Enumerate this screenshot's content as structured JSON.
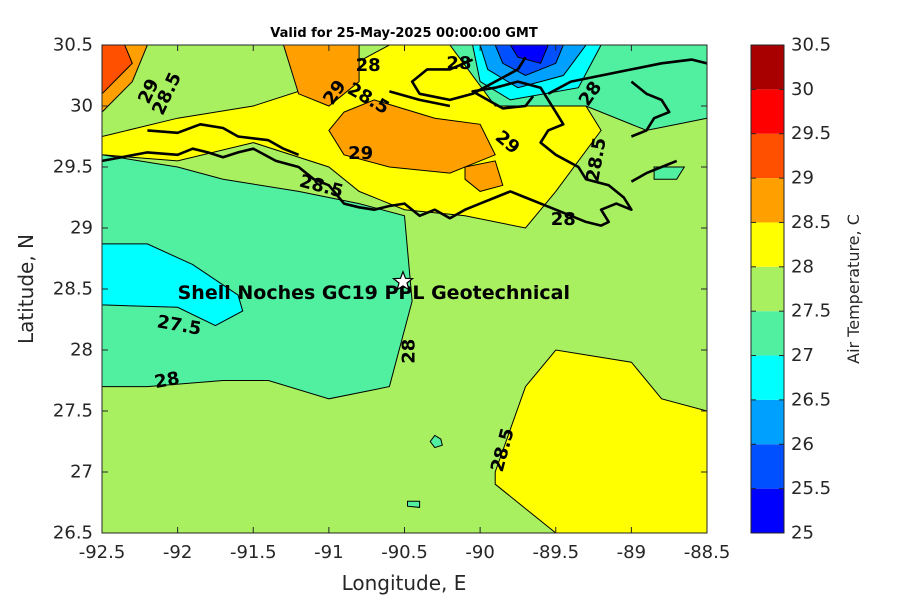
{
  "chart_data": {
    "type": "heatmap",
    "title": "Valid for 25-May-2025 00:00:00 GMT",
    "xlabel": "Longitude, E",
    "ylabel": "Latitude, N",
    "xlim": [
      -92.5,
      -88.5
    ],
    "ylim": [
      26.5,
      30.5
    ],
    "x_ticks": [
      "-92.5",
      "-92",
      "-91.5",
      "-91",
      "-90.5",
      "-90",
      "-89.5",
      "-89",
      "-88.5"
    ],
    "y_ticks": [
      "26.5",
      "27",
      "27.5",
      "28",
      "28.5",
      "29",
      "29.5",
      "30",
      "30.5"
    ],
    "colorbar": {
      "label": "Air Temperature, C",
      "range": [
        25,
        30.5
      ],
      "ticks": [
        "25",
        "25.5",
        "26",
        "26.5",
        "27",
        "27.5",
        "28",
        "28.5",
        "29",
        "29.5",
        "30",
        "30.5"
      ],
      "colors": [
        "#0000a8",
        "#0000ff",
        "#0050ff",
        "#00a0ff",
        "#00ffff",
        "#50f0a0",
        "#a8f060",
        "#ffff00",
        "#ffa000",
        "#ff5000",
        "#ff0000",
        "#a80000"
      ]
    },
    "regions": [
      {
        "value": 28.5,
        "lonlat": [
          [
            -89.5,
            26.5
          ],
          [
            -88.5,
            26.5
          ],
          [
            -88.5,
            27.5
          ],
          [
            -88.8,
            27.6
          ],
          [
            -89.0,
            27.9
          ],
          [
            -89.5,
            28.0
          ],
          [
            -89.7,
            27.7
          ],
          [
            -89.9,
            27.0
          ],
          [
            -89.9,
            26.9
          ],
          [
            -89.7,
            26.7
          ]
        ]
      },
      {
        "value": 27.5,
        "lonlat": [
          [
            -92.5,
            27.7
          ],
          [
            -92.2,
            27.7
          ],
          [
            -91.7,
            27.75
          ],
          [
            -91.4,
            27.75
          ],
          [
            -91.0,
            27.6
          ],
          [
            -90.6,
            27.7
          ],
          [
            -90.45,
            28.4
          ],
          [
            -90.5,
            29.1
          ],
          [
            -90.8,
            29.2
          ],
          [
            -91.2,
            29.3
          ],
          [
            -91.7,
            29.4
          ],
          [
            -92.0,
            29.5
          ],
          [
            -92.5,
            29.6
          ]
        ]
      },
      {
        "value": 27.0,
        "lonlat": [
          [
            -92.5,
            28.37
          ],
          [
            -92.0,
            28.35
          ],
          [
            -91.75,
            28.2
          ],
          [
            -91.57,
            28.32
          ],
          [
            -91.6,
            28.45
          ],
          [
            -91.9,
            28.7
          ],
          [
            -92.2,
            28.87
          ],
          [
            -92.5,
            28.87
          ]
        ]
      },
      {
        "value": 27.5,
        "lonlat": [
          [
            -90.3,
            27.3
          ],
          [
            -90.26,
            27.27
          ],
          [
            -90.25,
            27.22
          ],
          [
            -90.3,
            27.2
          ],
          [
            -90.33,
            27.25
          ]
        ]
      },
      {
        "value": 27.5,
        "lonlat": [
          [
            -90.48,
            26.76
          ],
          [
            -90.4,
            26.76
          ],
          [
            -90.4,
            26.71
          ],
          [
            -90.48,
            26.72
          ]
        ]
      },
      {
        "value": 27.5,
        "lonlat": [
          [
            -88.85,
            29.5
          ],
          [
            -88.65,
            29.5
          ],
          [
            -88.7,
            29.4
          ],
          [
            -88.85,
            29.4
          ]
        ]
      },
      {
        "value": 28.5,
        "lonlat": [
          [
            -92.5,
            29.75
          ],
          [
            -92.0,
            29.9
          ],
          [
            -91.5,
            30.0
          ],
          [
            -91.0,
            30.2
          ],
          [
            -90.9,
            30.3
          ],
          [
            -90.6,
            30.5
          ],
          [
            -89.7,
            30.5
          ],
          [
            -89.4,
            30.2
          ],
          [
            -89.2,
            29.8
          ],
          [
            -89.5,
            29.3
          ],
          [
            -89.7,
            29.0
          ],
          [
            -90.1,
            29.1
          ],
          [
            -90.5,
            29.15
          ],
          [
            -90.8,
            29.3
          ],
          [
            -91.0,
            29.5
          ],
          [
            -91.5,
            29.7
          ],
          [
            -92.0,
            29.55
          ],
          [
            -92.5,
            29.6
          ]
        ]
      },
      {
        "value": 29.0,
        "lonlat": [
          [
            -92.5,
            29.95
          ],
          [
            -92.3,
            30.2
          ],
          [
            -92.2,
            30.5
          ],
          [
            -92.5,
            30.5
          ]
        ]
      },
      {
        "value": 29.0,
        "lonlat": [
          [
            -91.3,
            30.5
          ],
          [
            -90.8,
            30.5
          ],
          [
            -90.8,
            30.2
          ],
          [
            -91.0,
            30.0
          ],
          [
            -91.2,
            30.1
          ]
        ]
      },
      {
        "value": 29.0,
        "lonlat": [
          [
            -90.9,
            29.95
          ],
          [
            -90.7,
            30.05
          ],
          [
            -90.3,
            29.9
          ],
          [
            -90.0,
            29.85
          ],
          [
            -89.9,
            29.6
          ],
          [
            -90.2,
            29.45
          ],
          [
            -90.6,
            29.5
          ],
          [
            -90.9,
            29.6
          ],
          [
            -91.0,
            29.8
          ]
        ]
      },
      {
        "value": 29.0,
        "lonlat": [
          [
            -90.1,
            29.5
          ],
          [
            -89.9,
            29.55
          ],
          [
            -89.85,
            29.35
          ],
          [
            -90.0,
            29.3
          ],
          [
            -90.1,
            29.4
          ]
        ]
      },
      {
        "value": 29.5,
        "lonlat": [
          [
            -92.5,
            30.1
          ],
          [
            -92.3,
            30.35
          ],
          [
            -92.35,
            30.5
          ],
          [
            -92.5,
            30.5
          ]
        ]
      },
      {
        "value": 27.5,
        "lonlat": [
          [
            -90.2,
            30.5
          ],
          [
            -89.9,
            30.0
          ],
          [
            -89.3,
            30.0
          ],
          [
            -88.9,
            29.8
          ],
          [
            -88.5,
            29.9
          ],
          [
            -88.5,
            30.5
          ]
        ]
      },
      {
        "value": 27.0,
        "lonlat": [
          [
            -90.05,
            30.5
          ],
          [
            -90.0,
            30.2
          ],
          [
            -89.8,
            30.05
          ],
          [
            -89.35,
            30.15
          ],
          [
            -89.2,
            30.5
          ]
        ]
      },
      {
        "value": 26.5,
        "lonlat": [
          [
            -90.0,
            30.5
          ],
          [
            -89.95,
            30.3
          ],
          [
            -89.75,
            30.15
          ],
          [
            -89.45,
            30.25
          ],
          [
            -89.3,
            30.5
          ]
        ]
      },
      {
        "value": 26.0,
        "lonlat": [
          [
            -89.9,
            30.5
          ],
          [
            -89.85,
            30.35
          ],
          [
            -89.7,
            30.25
          ],
          [
            -89.5,
            30.35
          ],
          [
            -89.45,
            30.5
          ]
        ]
      },
      {
        "value": 25.5,
        "lonlat": [
          [
            -89.8,
            30.5
          ],
          [
            -89.75,
            30.4
          ],
          [
            -89.6,
            30.35
          ],
          [
            -89.55,
            30.5
          ]
        ]
      }
    ],
    "contour_labels": [
      {
        "text": "29",
        "lon": -92.19,
        "lat": 30.12,
        "angle": -65
      },
      {
        "text": "28.5",
        "lon": -92.07,
        "lat": 30.1,
        "angle": -65
      },
      {
        "text": "28",
        "lon": -90.74,
        "lat": 30.33,
        "angle": 0
      },
      {
        "text": "29",
        "lon": -90.96,
        "lat": 30.11,
        "angle": -55
      },
      {
        "text": "28.5",
        "lon": -90.74,
        "lat": 30.06,
        "angle": 30
      },
      {
        "text": "29",
        "lon": -90.79,
        "lat": 29.61,
        "angle": 0
      },
      {
        "text": "28.5",
        "lon": -91.05,
        "lat": 29.34,
        "angle": 15
      },
      {
        "text": "29",
        "lon": -89.82,
        "lat": 29.7,
        "angle": 40
      },
      {
        "text": "28",
        "lon": -89.27,
        "lat": 30.1,
        "angle": -55
      },
      {
        "text": "28",
        "lon": -90.14,
        "lat": 30.35,
        "angle": 0
      },
      {
        "text": "28.5",
        "lon": -89.23,
        "lat": 29.56,
        "angle": -80
      },
      {
        "text": "28",
        "lon": -89.45,
        "lat": 29.07,
        "angle": 0
      },
      {
        "text": "27.5",
        "lon": -91.99,
        "lat": 28.2,
        "angle": 10
      },
      {
        "text": "28",
        "lon": -92.07,
        "lat": 27.75,
        "angle": -10
      },
      {
        "text": "28",
        "lon": -90.47,
        "lat": 27.99,
        "angle": -90
      },
      {
        "text": "28.5",
        "lon": -89.85,
        "lat": 27.18,
        "angle": -75
      }
    ],
    "annotation": {
      "text": "Shell Noches   GC19 PPL  Geotechnical",
      "lon": -92.0,
      "lat": 28.42
    },
    "marker": {
      "symbol": "star",
      "lon": -90.51,
      "lat": 28.56
    },
    "coastlines": [
      [
        [
          -92.5,
          29.55
        ],
        [
          -92.2,
          29.62
        ],
        [
          -92.0,
          29.6
        ],
        [
          -91.9,
          29.65
        ],
        [
          -91.8,
          29.62
        ],
        [
          -91.7,
          29.58
        ],
        [
          -91.6,
          29.62
        ],
        [
          -91.5,
          29.65
        ],
        [
          -91.35,
          29.55
        ],
        [
          -91.2,
          29.5
        ],
        [
          -91.1,
          29.4
        ],
        [
          -91.0,
          29.35
        ],
        [
          -90.9,
          29.2
        ],
        [
          -90.8,
          29.17
        ],
        [
          -90.7,
          29.15
        ],
        [
          -90.6,
          29.18
        ],
        [
          -90.5,
          29.2
        ],
        [
          -90.4,
          29.1
        ],
        [
          -90.3,
          29.15
        ],
        [
          -90.2,
          29.08
        ],
        [
          -90.1,
          29.15
        ],
        [
          -90.0,
          29.2
        ],
        [
          -89.9,
          29.25
        ],
        [
          -89.8,
          29.3
        ],
        [
          -89.7,
          29.25
        ],
        [
          -89.6,
          29.2
        ],
        [
          -89.5,
          29.15
        ],
        [
          -89.4,
          29.1
        ],
        [
          -89.3,
          29.05
        ],
        [
          -89.2,
          29.02
        ],
        [
          -89.15,
          29.05
        ],
        [
          -89.2,
          29.15
        ],
        [
          -89.1,
          29.2
        ],
        [
          -89.0,
          29.15
        ],
        [
          -89.05,
          29.25
        ],
        [
          -89.15,
          29.35
        ],
        [
          -89.3,
          29.4
        ],
        [
          -89.35,
          29.5
        ],
        [
          -89.5,
          29.6
        ],
        [
          -89.6,
          29.7
        ],
        [
          -89.55,
          29.8
        ],
        [
          -89.45,
          29.85
        ],
        [
          -89.5,
          29.95
        ],
        [
          -89.55,
          30.05
        ],
        [
          -89.6,
          30.15
        ],
        [
          -89.75,
          30.2
        ],
        [
          -89.9,
          30.15
        ],
        [
          -90.05,
          30.12
        ],
        [
          -89.95,
          30.05
        ],
        [
          -89.85,
          29.98
        ],
        [
          -89.7,
          30.0
        ],
        [
          -89.65,
          30.08
        ]
      ],
      [
        [
          -89.55,
          30.1
        ],
        [
          -89.4,
          30.2
        ],
        [
          -89.2,
          30.25
        ],
        [
          -89.0,
          30.3
        ],
        [
          -88.8,
          30.35
        ],
        [
          -88.6,
          30.38
        ],
        [
          -88.5,
          30.35
        ]
      ],
      [
        [
          -89.0,
          29.75
        ],
        [
          -88.9,
          29.8
        ],
        [
          -88.85,
          29.9
        ],
        [
          -88.75,
          29.95
        ],
        [
          -88.8,
          30.05
        ],
        [
          -88.9,
          30.1
        ],
        [
          -89.0,
          30.2
        ]
      ],
      [
        [
          -90.05,
          30.38
        ],
        [
          -90.2,
          30.3
        ],
        [
          -90.35,
          30.3
        ],
        [
          -90.45,
          30.2
        ],
        [
          -90.4,
          30.1
        ],
        [
          -90.2,
          30.05
        ],
        [
          -90.05,
          30.1
        ],
        [
          -89.9,
          30.2
        ],
        [
          -89.75,
          30.3
        ],
        [
          -89.7,
          30.4
        ]
      ],
      [
        [
          -92.2,
          29.8
        ],
        [
          -92.0,
          29.78
        ],
        [
          -91.85,
          29.85
        ],
        [
          -91.7,
          29.82
        ],
        [
          -91.6,
          29.75
        ],
        [
          -91.4,
          29.72
        ],
        [
          -91.3,
          29.65
        ],
        [
          -91.2,
          29.6
        ]
      ],
      [
        [
          -90.6,
          30.12
        ],
        [
          -90.4,
          30.05
        ],
        [
          -90.2,
          30.0
        ]
      ],
      [
        [
          -88.7,
          29.55
        ],
        [
          -88.8,
          29.5
        ],
        [
          -88.9,
          29.45
        ],
        [
          -89.0,
          29.38
        ]
      ]
    ]
  }
}
